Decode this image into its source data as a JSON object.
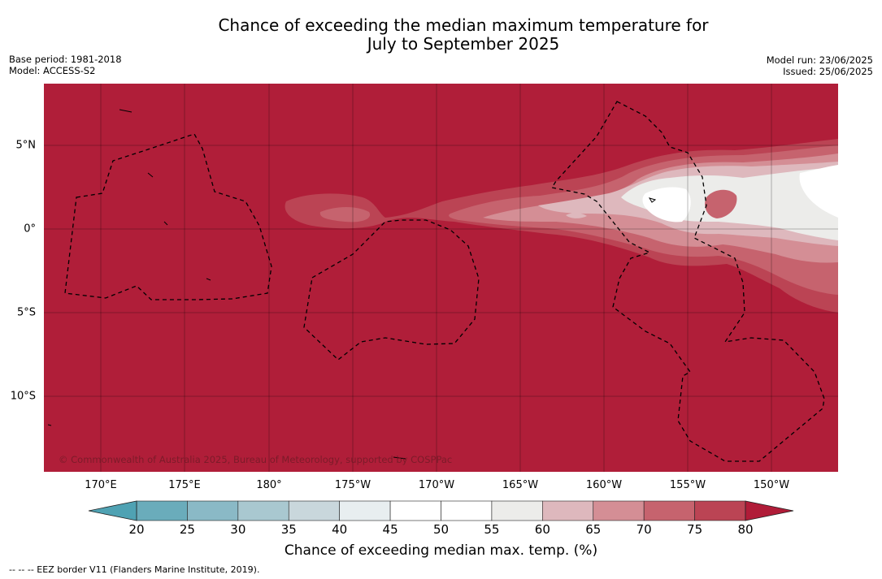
{
  "title_line1": "Chance of exceeding the median maximum temperature for",
  "title_line2": "July to September 2025",
  "base_period": "Base period: 1981-2018",
  "model": "Model: ACCESS-S2",
  "model_run": "Model run: 23/06/2025",
  "issued": "Issued: 25/06/2025",
  "copyright": "© Commonwealth of Australia 2025, Bureau of Meteorology, supported by COSPPac",
  "longitude_labels": [
    "170°E",
    "175°E",
    "180°",
    "175°W",
    "170°W",
    "165°W",
    "160°W",
    "155°W",
    "150°W"
  ],
  "latitude_labels": [
    "5°N",
    "0°",
    "5°S",
    "10°S"
  ],
  "colorbar": {
    "ticks": [
      "20",
      "25",
      "30",
      "35",
      "40",
      "45",
      "50",
      "55",
      "60",
      "65",
      "70",
      "75",
      "80"
    ],
    "colors": [
      "#6aacbb",
      "#8ab9c6",
      "#a9c8d0",
      "#c9d7dc",
      "#e8eef0",
      "#ffffff",
      "#ffffff",
      "#ececea",
      "#deb8bd",
      "#d48e95",
      "#c6636e",
      "#bb4454"
    ],
    "under_color": "#4fa2b3",
    "over_color": "#b01c38",
    "label": "Chance of exceeding median max. temp. (%)"
  },
  "legend_footer": "--  --  -- EEZ border V11 (Flanders Marine Institute, 2019).",
  "map_background_color": "#b01e39"
}
